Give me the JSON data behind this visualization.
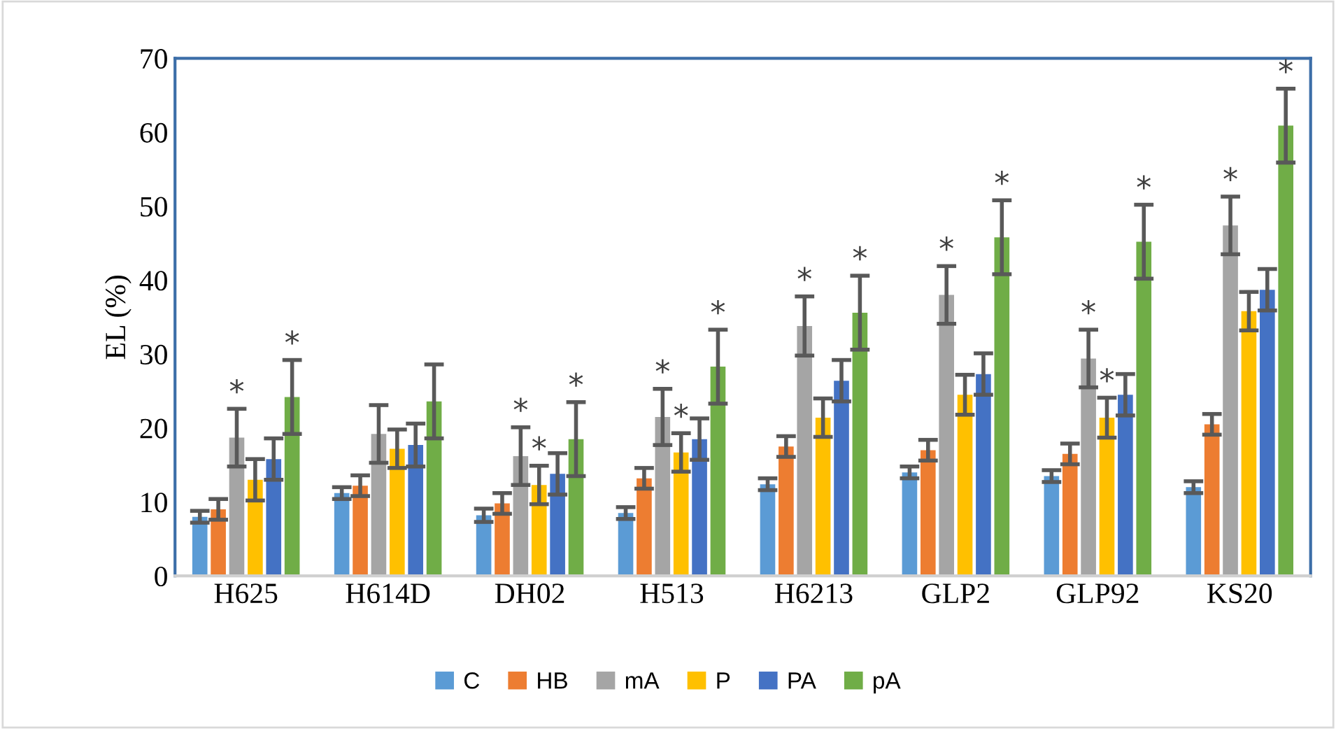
{
  "chart_data": {
    "type": "bar",
    "ylabel": "EL (%)",
    "categories": [
      "H625",
      "H614D",
      "DH02",
      "H513",
      "H6213",
      "GLP2",
      "GLP92",
      "KS20"
    ],
    "ylim": [
      0,
      70
    ],
    "yticks": [
      0,
      10,
      20,
      30,
      40,
      50,
      60,
      70
    ],
    "grid": false,
    "legend": "bottom",
    "series": [
      {
        "name": "C",
        "color": "#5b9bd5",
        "values": [
          8,
          11.2,
          8.2,
          8.5,
          12.4,
          14,
          13.5,
          12
        ],
        "errors": [
          0.8,
          0.8,
          0.9,
          0.8,
          0.8,
          0.8,
          0.8,
          0.8
        ],
        "value_labels": [
          null,
          null,
          null,
          null,
          null,
          null,
          null,
          null
        ]
      },
      {
        "name": "HB",
        "color": "#ed7d31",
        "values": [
          9,
          12.2,
          9.8,
          13.2,
          17.5,
          17,
          16.5,
          20.5
        ],
        "errors": [
          1.4,
          1.4,
          1.4,
          1.4,
          1.4,
          1.4,
          1.4,
          1.4
        ],
        "value_labels": [
          null,
          null,
          null,
          null,
          null,
          null,
          null,
          null
        ]
      },
      {
        "name": "mA",
        "color": "#a5a5a5",
        "values": [
          18.7,
          19.2,
          16.2,
          21.5,
          33.8,
          38,
          29.4,
          47.4
        ],
        "errors": [
          3.9,
          3.9,
          3.9,
          3.8,
          4,
          3.9,
          3.9,
          3.9
        ],
        "value_labels": [
          "*",
          null,
          "*",
          "*",
          "*",
          "*",
          "*",
          "*"
        ]
      },
      {
        "name": "P",
        "color": "#ffc000",
        "values": [
          13,
          17.2,
          12.3,
          16.7,
          21.4,
          24.5,
          21.4,
          35.8
        ],
        "errors": [
          2.8,
          2.6,
          2.6,
          2.6,
          2.6,
          2.7,
          2.7,
          2.6
        ],
        "value_labels": [
          null,
          null,
          "*",
          "*",
          null,
          null,
          "*",
          null
        ]
      },
      {
        "name": "PA",
        "color": "#4472c4",
        "values": [
          15.8,
          17.7,
          13.8,
          18.5,
          26.4,
          27.3,
          24.5,
          38.7
        ],
        "errors": [
          2.8,
          2.9,
          2.8,
          2.8,
          2.8,
          2.8,
          2.8,
          2.8
        ],
        "value_labels": [
          null,
          null,
          null,
          null,
          null,
          null,
          null,
          null
        ]
      },
      {
        "name": "pA",
        "color": "#70ad47",
        "values": [
          24.2,
          23.6,
          18.5,
          28.3,
          35.6,
          45.8,
          45.2,
          60.9
        ],
        "errors": [
          5,
          5,
          5,
          5,
          5,
          5,
          5,
          5
        ],
        "value_labels": [
          "*",
          null,
          "*",
          "*",
          "*",
          "*",
          "*",
          "*"
        ]
      }
    ]
  }
}
